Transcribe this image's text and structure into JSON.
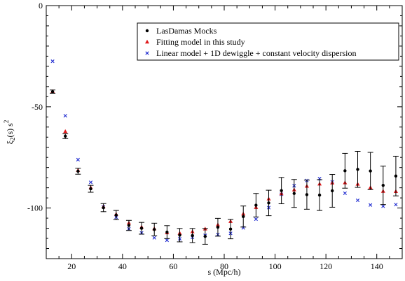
{
  "chart_data": {
    "type": "scatter",
    "title": "",
    "xlabel": "s (Mpc/h)",
    "ylabel_main": "ξ",
    "ylabel_sub": "2",
    "ylabel_rest": "(s) s",
    "ylabel_sup": "2",
    "xlim": [
      10,
      150
    ],
    "ylim": [
      -125,
      0
    ],
    "xticks": [
      20,
      40,
      60,
      80,
      100,
      120,
      140
    ],
    "yticks": [
      0,
      -50,
      -100
    ],
    "xminor_step": 5,
    "yminor_step": 10,
    "grid": false,
    "legend_position": "top-right",
    "series": [
      {
        "name": "LasDamas Mocks",
        "color": "#000000",
        "marker": "dot",
        "errorbars": true,
        "x": [
          12.5,
          17.5,
          22.5,
          27.5,
          32.5,
          37.5,
          42.5,
          47.5,
          52.5,
          57.5,
          62.5,
          67.5,
          72.5,
          77.5,
          82.5,
          87.5,
          92.5,
          97.5,
          102.5,
          107.5,
          112.5,
          117.5,
          122.5,
          127.5,
          132.5,
          137.5,
          142.5,
          147.5
        ],
        "y": [
          -42.5,
          -64.5,
          -81.8,
          -90.5,
          -99.8,
          -103.5,
          -108.6,
          -110,
          -110.6,
          -111.9,
          -113.4,
          -113.6,
          -114,
          -109.5,
          -110.4,
          -104.2,
          -98.6,
          -97.5,
          -91.4,
          -92.8,
          -93.4,
          -93.6,
          -91.5,
          -81.6,
          -80.9,
          -81.7,
          -88.8,
          -84.2
        ],
        "err": [
          0.8,
          1.2,
          1.5,
          1.7,
          2,
          2.3,
          2.5,
          2.9,
          3.1,
          3.2,
          3.3,
          3.5,
          3.9,
          4.4,
          4.8,
          5.2,
          5.8,
          6.3,
          6.5,
          6.9,
          7.2,
          7.6,
          8.1,
          8.6,
          8.9,
          9.2,
          9.5,
          9.8
        ]
      },
      {
        "name": "Fitting model in this study",
        "color": "#e0191b",
        "marker": "triangle",
        "errorbars": false,
        "x": [
          12.5,
          17.5,
          22.5,
          27.5,
          32.5,
          37.5,
          42.5,
          47.5,
          52.5,
          57.5,
          62.5,
          67.5,
          72.5,
          77.5,
          82.5,
          87.5,
          92.5,
          97.5,
          102.5,
          107.5,
          112.5,
          117.5,
          122.5,
          127.5,
          132.5,
          137.5,
          142.5,
          147.5
        ],
        "y": [
          -42.4,
          -62.2,
          -81.4,
          -89.9,
          -99.4,
          -103.1,
          -107.4,
          -109.4,
          -110.2,
          -112.2,
          -112.4,
          -111.7,
          -110.3,
          -108.3,
          -106.6,
          -102.9,
          -99.7,
          -95.5,
          -92.9,
          -91,
          -89.2,
          -88.1,
          -87.6,
          -87.5,
          -88.2,
          -89.9,
          -91.7,
          -91.8
        ]
      },
      {
        "name": "Linear model + 1D dewiggle + constant velocity dispersion",
        "color": "#1f2bd0",
        "marker": "x",
        "errorbars": false,
        "x": [
          12.5,
          17.5,
          22.5,
          27.5,
          32.5,
          37.5,
          42.5,
          47.5,
          52.5,
          57.5,
          62.5,
          67.5,
          72.5,
          77.5,
          82.5,
          87.5,
          92.5,
          97.5,
          102.5,
          107.5,
          112.5,
          117.5,
          122.5,
          127.5,
          132.5,
          137.5,
          142.5,
          147.5
        ],
        "y": [
          -27.5,
          -54.4,
          -76.1,
          -87.3,
          -99.4,
          -104.5,
          -110.3,
          -112.3,
          -114.7,
          -115.9,
          -115.2,
          -114.5,
          -113.5,
          -113.1,
          -112.5,
          -109.8,
          -105.5,
          -99.8,
          -93.2,
          -89,
          -86.4,
          -85.5,
          -87.1,
          -92.7,
          -96.2,
          -98.5,
          -99.1,
          -98.3
        ]
      }
    ]
  }
}
